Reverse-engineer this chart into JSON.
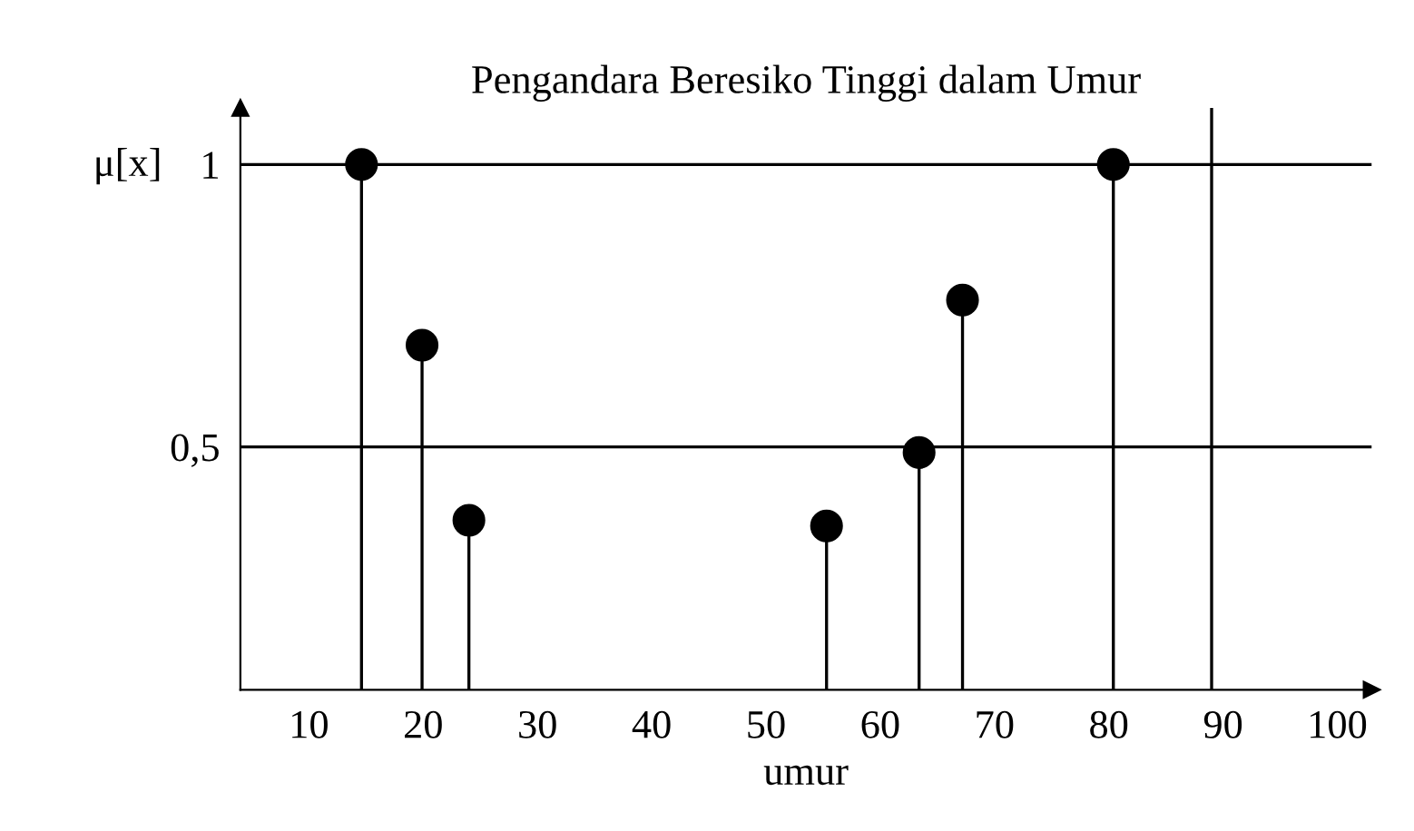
{
  "chart_data": {
    "type": "lollipop",
    "title": "Pengandara Beresiko Tinggi dalam Umur",
    "xlabel": "umur",
    "ylabel": "μ[x]",
    "x": [
      14.6,
      19.9,
      24,
      55.3,
      63.4,
      67.2,
      80.4
    ],
    "values": [
      1,
      0.68,
      0.37,
      0.36,
      0.49,
      0.76,
      1
    ],
    "color": "#000000",
    "marker": "circle",
    "xlim": [
      4,
      103
    ],
    "ylim": [
      0.07,
      1.1
    ],
    "xticks": [
      10,
      20,
      30,
      40,
      50,
      60,
      70,
      80,
      90,
      100
    ],
    "yticks": [
      {
        "value": 0.5,
        "label": "0,5"
      },
      1
    ],
    "ref_lines": [
      {
        "axis": "y",
        "value": 1,
        "color": "#000000"
      },
      {
        "axis": "y",
        "value": 0.5,
        "color": "#000000"
      },
      {
        "axis": "x",
        "value": 89,
        "color": "#000000"
      }
    ],
    "grid": false,
    "legend": false
  }
}
